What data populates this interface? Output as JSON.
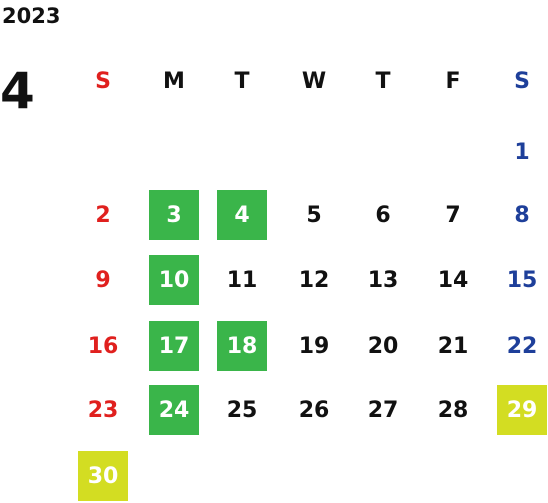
{
  "year": "2023",
  "month": "4",
  "weekdays": [
    {
      "label": "S",
      "color": "#e0201e"
    },
    {
      "label": "M",
      "color": "#111111"
    },
    {
      "label": "T",
      "color": "#111111"
    },
    {
      "label": "W",
      "color": "#111111"
    },
    {
      "label": "T",
      "color": "#111111"
    },
    {
      "label": "F",
      "color": "#111111"
    },
    {
      "label": "S",
      "color": "#1e3f9a"
    }
  ],
  "weeks": [
    [
      null,
      null,
      null,
      null,
      null,
      null,
      {
        "day": 1
      }
    ],
    [
      {
        "day": 2
      },
      {
        "day": 3,
        "fill": "#3ab54a"
      },
      {
        "day": 4,
        "fill": "#3ab54a"
      },
      {
        "day": 5
      },
      {
        "day": 6
      },
      {
        "day": 7
      },
      {
        "day": 8
      }
    ],
    [
      {
        "day": 9
      },
      {
        "day": 10,
        "fill": "#3ab54a"
      },
      {
        "day": 11
      },
      {
        "day": 12
      },
      {
        "day": 13
      },
      {
        "day": 14
      },
      {
        "day": 15
      }
    ],
    [
      {
        "day": 16
      },
      {
        "day": 17,
        "fill": "#3ab54a"
      },
      {
        "day": 18,
        "fill": "#3ab54a"
      },
      {
        "day": 19
      },
      {
        "day": 20
      },
      {
        "day": 21
      },
      {
        "day": 22
      }
    ],
    [
      {
        "day": 23
      },
      {
        "day": 24,
        "fill": "#3ab54a"
      },
      {
        "day": 25
      },
      {
        "day": 26
      },
      {
        "day": 27
      },
      {
        "day": 28
      },
      {
        "day": 29,
        "fill": "#d3dd22"
      }
    ],
    [
      {
        "day": 30,
        "fill": "#d3dd22"
      },
      null,
      null,
      null,
      null,
      null,
      null
    ]
  ]
}
